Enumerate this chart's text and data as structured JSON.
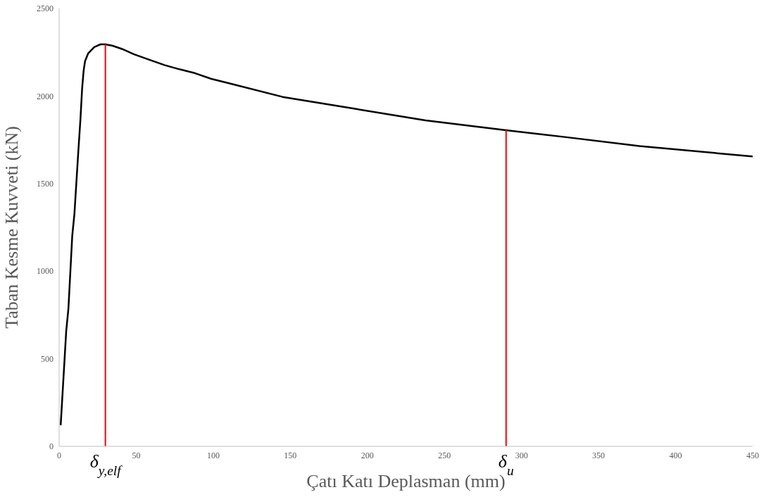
{
  "chart_data": {
    "type": "line",
    "xlabel": "Çatı Katı Deplasman (mm)",
    "ylabel": "Taban Kesme Kuvveti (kN)",
    "x": [
      1,
      4.6,
      6,
      8.5,
      9.9,
      12.5,
      13.8,
      14.9,
      15.9,
      16.8,
      18.8,
      22.8,
      26.8,
      30,
      34.7,
      40.7,
      48.6,
      58.5,
      68.6,
      78.4,
      88.3,
      98.7,
      107.9,
      145,
      191.3,
      237.7,
      290,
      330,
      376.6,
      450
    ],
    "series": [
      {
        "color": "#000000",
        "values": [
          120,
          660,
          784,
          1202,
          1326,
          1692,
          1865,
          2042,
          2146,
          2199,
          2243,
          2279,
          2295,
          2295,
          2287,
          2269,
          2238,
          2207,
          2176,
          2152,
          2130,
          2098,
          2078,
          1995,
          1928,
          1861,
          1805,
          1764,
          1714,
          1655
        ]
      }
    ],
    "xlim": [
      0,
      450
    ],
    "xticks": [
      0,
      50,
      100,
      150,
      200,
      250,
      300,
      350,
      400,
      450
    ],
    "ylim": [
      0,
      2500
    ],
    "yticks": [
      0,
      500,
      1000,
      1500,
      2000,
      2500
    ],
    "grid": false,
    "marker": "none",
    "line_style": "solid",
    "ref_lines": [
      {
        "axis": "x",
        "value": 30,
        "label": "δ$_{y,elf}$",
        "color": "#ff0000"
      },
      {
        "axis": "x",
        "value": 290,
        "label": "δ$_{u}$",
        "color": "#ff0000"
      }
    ]
  }
}
